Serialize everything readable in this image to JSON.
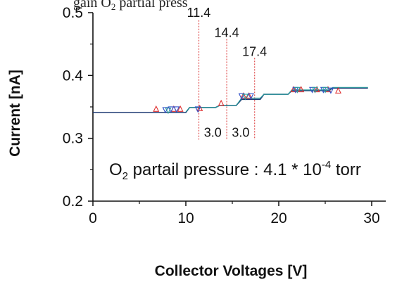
{
  "chart_data": {
    "type": "line",
    "title_fragment": "gain O",
    "title_fragment_sub": "2",
    "title_fragment_tail": " partial press",
    "xlabel": "Collector Voltages [V]",
    "ylabel": "Current [nA]",
    "xlim": [
      0,
      30
    ],
    "ylim": [
      0.2,
      0.5
    ],
    "x_ticks": [
      0,
      10,
      20,
      30
    ],
    "x_tick_labels": [
      "0",
      "10",
      "20",
      "30"
    ],
    "y_ticks": [
      0.2,
      0.3,
      0.4,
      0.5
    ],
    "y_tick_labels": [
      "0.2",
      "0.3",
      "0.4",
      "0.5"
    ],
    "x_minor_ticks": [
      5,
      15,
      25
    ],
    "y_minor_ticks": [
      0.25,
      0.35,
      0.45
    ],
    "grid": false,
    "series": [
      {
        "color": "#1f3a73",
        "x": [
          0,
          10,
          10.4,
          13.2,
          13.6,
          15.4,
          16.0,
          18.0,
          18.4,
          21.0,
          21.4,
          25.4,
          25.8,
          29.6
        ],
        "values": [
          0.341,
          0.341,
          0.349,
          0.349,
          0.352,
          0.352,
          0.362,
          0.362,
          0.37,
          0.37,
          0.376,
          0.376,
          0.38,
          0.38
        ]
      },
      {
        "color": "#2a9d9d",
        "x": [
          10,
          10.4,
          13.2,
          13.6,
          15.4,
          16.0,
          18.0,
          18.4,
          21.0,
          21.4,
          25.4,
          25.8,
          29.6
        ],
        "values": [
          0.342,
          0.349,
          0.349,
          0.352,
          0.352,
          0.364,
          0.364,
          0.37,
          0.37,
          0.377,
          0.377,
          0.381,
          0.381
        ]
      }
    ],
    "markers_red": {
      "color": "#e03030",
      "x": [
        6.8,
        8.7,
        9.4,
        11.5,
        13.8,
        16.2,
        16.8,
        21.6,
        22.4,
        24.1,
        25.3,
        26.4
      ],
      "values": [
        0.347,
        0.347,
        0.347,
        0.348,
        0.356,
        0.368,
        0.368,
        0.378,
        0.378,
        0.378,
        0.378,
        0.376
      ]
    },
    "markers_blue": {
      "color": "#3050c8",
      "x": [
        7.8,
        8.4,
        9.0,
        11.3,
        16.0,
        17.0,
        21.8,
        23.6,
        24.8,
        25.6
      ],
      "values": [
        0.345,
        0.346,
        0.346,
        0.346,
        0.367,
        0.367,
        0.377,
        0.377,
        0.377,
        0.376
      ]
    },
    "markers_teal": {
      "color": "#2a9d9d",
      "x": [
        8.1,
        16.4,
        22.0,
        23.9,
        25.0
      ],
      "values": [
        0.344,
        0.366,
        0.377,
        0.377,
        0.377
      ]
    },
    "vlines": [
      {
        "x": 11.4,
        "label": "11.4",
        "y_top": 0.488,
        "y_bottom": 0.298,
        "label_y": 0.5
      },
      {
        "x": 14.4,
        "label": "14.4",
        "y_top": 0.458,
        "y_bottom": 0.298,
        "label_y": 0.468
      },
      {
        "x": 17.4,
        "label": "17.4",
        "y_top": 0.428,
        "y_bottom": 0.298,
        "label_y": 0.438
      }
    ],
    "vline_color": "#e05050",
    "gap_labels": [
      {
        "x": 12.9,
        "y": 0.309,
        "label": "3.0"
      },
      {
        "x": 15.9,
        "y": 0.309,
        "label": "3.0"
      }
    ],
    "annotation": {
      "prefix": "O",
      "sub": "2",
      "mid": " partail pressure : 4.1 * 10",
      "sup": "-4",
      "tail": " torr"
    }
  }
}
